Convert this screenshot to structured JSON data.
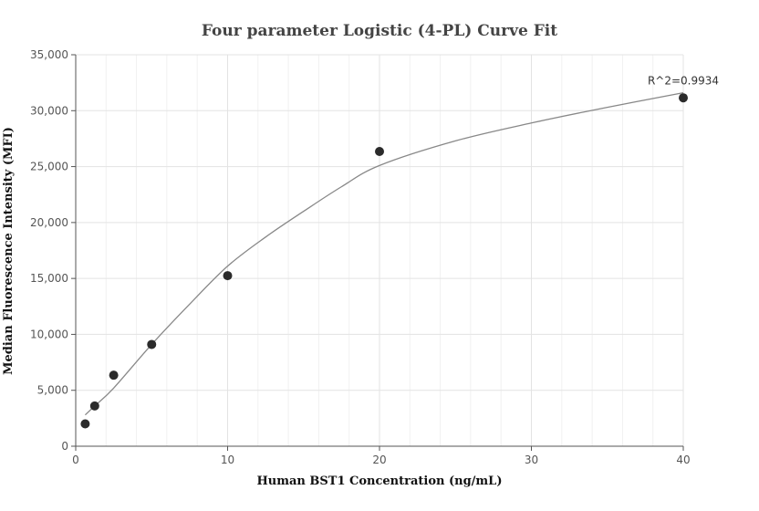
{
  "chart_data": {
    "type": "scatter",
    "title": "Four parameter Logistic (4-PL) Curve Fit",
    "xlabel": "Human BST1 Concentration (ng/mL)",
    "ylabel": "Median Fluorescence Intensity (MFI)",
    "xlim": [
      0,
      40
    ],
    "ylim": [
      0,
      35000
    ],
    "x_ticks": [
      0,
      10,
      20,
      30,
      40
    ],
    "y_ticks": [
      0,
      5000,
      10000,
      15000,
      20000,
      25000,
      30000,
      35000
    ],
    "x_tick_labels": [
      "0",
      "10",
      "20",
      "30",
      "40"
    ],
    "y_tick_labels": [
      "0",
      "5,000",
      "10,000",
      "15,000",
      "20,000",
      "25,000",
      "30,000",
      "35,000"
    ],
    "grid": true,
    "points": {
      "x": [
        0.625,
        1.25,
        2.5,
        5,
        10,
        20,
        40
      ],
      "y": [
        2000,
        3600,
        6350,
        9100,
        15250,
        26350,
        31150
      ]
    },
    "fit_curve": {
      "x": [
        0.625,
        1.25,
        2.5,
        5,
        7.5,
        10,
        12.5,
        15,
        17.5,
        20,
        25,
        30,
        35,
        40
      ],
      "y": [
        2800,
        3600,
        5200,
        9100,
        12700,
        16100,
        18700,
        21000,
        23200,
        25100,
        27300,
        28900,
        30300,
        31600
      ]
    },
    "annotation": "R^2=0.9934",
    "point_color": "#2b2b2b",
    "curve_color": "#888888"
  }
}
